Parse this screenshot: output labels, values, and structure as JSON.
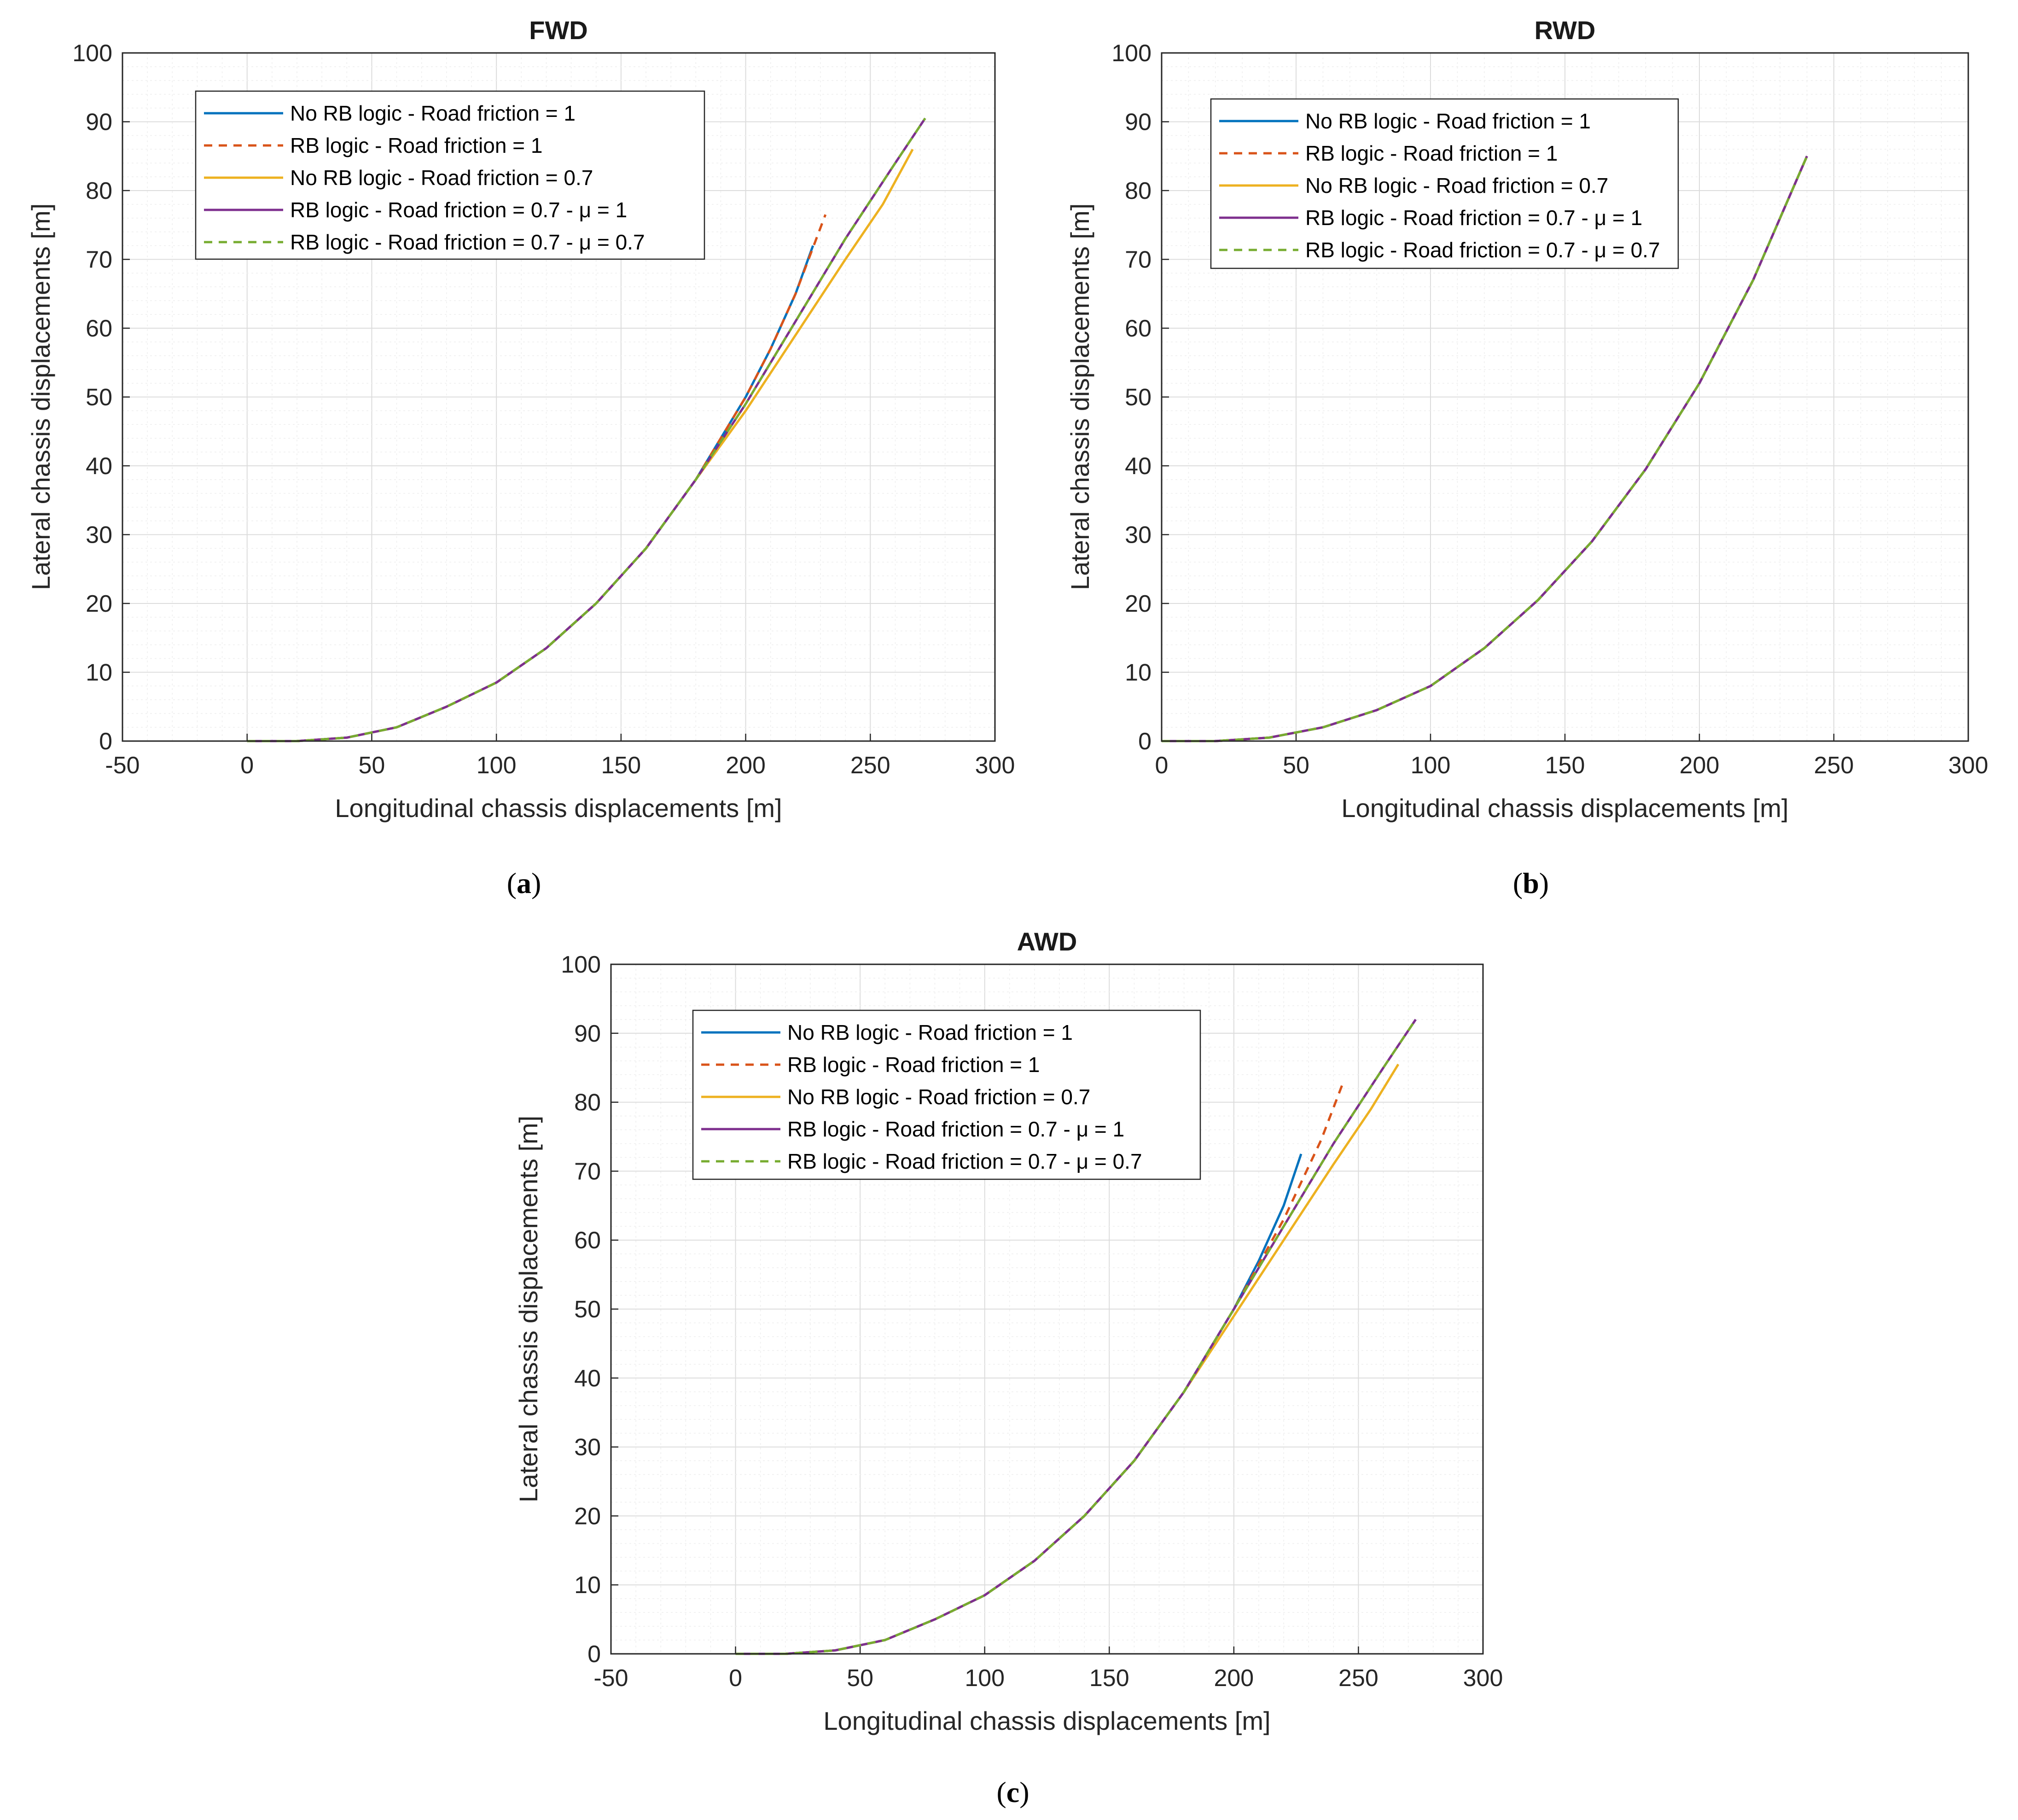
{
  "chart_data": [
    {
      "type": "line",
      "panel_id": "a",
      "title": "FWD",
      "caption_label": "a",
      "xlabel": "Longitudinal chassis displacements [m]",
      "ylabel": "Lateral chassis displacements [m]",
      "xlim": [
        -50,
        300
      ],
      "ylim": [
        0,
        100
      ],
      "xticks": [
        "-50",
        "0",
        "50",
        "100",
        "150",
        "200",
        "250",
        "300"
      ],
      "yticks": [
        "0",
        "10",
        "20",
        "30",
        "40",
        "50",
        "60",
        "70",
        "80",
        "90",
        "100"
      ],
      "grid": "major and minor",
      "legend_position": "top-left",
      "series": [
        {
          "name": "No RB logic - Road friction = 1",
          "color": "#0072BD",
          "style": "solid",
          "x": [
            0,
            20,
            40,
            60,
            80,
            100,
            120,
            140,
            160,
            180,
            200,
            210,
            220,
            227
          ],
          "y": [
            0,
            0,
            0.5,
            2,
            5,
            8.5,
            13.5,
            20,
            28,
            38,
            50,
            57,
            65,
            72
          ]
        },
        {
          "name": "RB logic - Road friction = 1",
          "color": "#D95319",
          "style": "dashed",
          "x": [
            0,
            20,
            40,
            60,
            80,
            100,
            120,
            140,
            160,
            180,
            200,
            210,
            220,
            232
          ],
          "y": [
            0,
            0,
            0.5,
            2,
            5,
            8.5,
            13.5,
            20,
            28,
            38,
            50,
            57,
            65,
            76.5
          ]
        },
        {
          "name": "No RB logic - Road friction = 0.7",
          "color": "#EDB120",
          "style": "solid",
          "x": [
            0,
            20,
            40,
            60,
            80,
            100,
            120,
            140,
            160,
            180,
            200,
            220,
            240,
            255,
            267
          ],
          "y": [
            0,
            0,
            0.5,
            2,
            5,
            8.5,
            13.5,
            20,
            28,
            38,
            48,
            59,
            70,
            78,
            86
          ]
        },
        {
          "name": "RB logic - Road friction = 0.7 - μ = 1",
          "color": "#7E2F8E",
          "style": "solid",
          "x": [
            0,
            20,
            40,
            60,
            80,
            100,
            120,
            140,
            160,
            180,
            200,
            220,
            240,
            260,
            272
          ],
          "y": [
            0,
            0,
            0.5,
            2,
            5,
            8.5,
            13.5,
            20,
            28,
            38,
            49,
            61,
            73,
            84,
            90.5
          ]
        },
        {
          "name": "RB logic - Road friction = 0.7 - μ = 0.7",
          "color": "#77AC30",
          "style": "dashed",
          "x": [
            0,
            20,
            40,
            60,
            80,
            100,
            120,
            140,
            160,
            180,
            200,
            220,
            240,
            260,
            272
          ],
          "y": [
            0,
            0,
            0.5,
            2,
            5,
            8.5,
            13.5,
            20,
            28,
            38,
            49,
            61,
            73,
            84,
            90.5
          ]
        }
      ]
    },
    {
      "type": "line",
      "panel_id": "b",
      "title": "RWD",
      "caption_label": "b",
      "xlabel": "Longitudinal chassis displacements [m]",
      "ylabel": "Lateral chassis displacements [m]",
      "xlim": [
        0,
        300
      ],
      "ylim": [
        0,
        100
      ],
      "xticks": [
        "0",
        "50",
        "100",
        "150",
        "200",
        "250",
        "300"
      ],
      "yticks": [
        "0",
        "10",
        "20",
        "30",
        "40",
        "50",
        "60",
        "70",
        "80",
        "90",
        "100"
      ],
      "grid": "major and minor",
      "legend_position": "top-left",
      "series": [
        {
          "name": "No RB logic - Road friction = 1",
          "color": "#0072BD",
          "style": "solid",
          "x": [
            0,
            20,
            40,
            60,
            80,
            100,
            120,
            140,
            160,
            180,
            200,
            220,
            240
          ],
          "y": [
            0,
            0,
            0.5,
            2,
            4.5,
            8,
            13.5,
            20.5,
            29,
            39.5,
            52,
            67,
            85
          ]
        },
        {
          "name": "RB logic - Road friction = 1",
          "color": "#D95319",
          "style": "dashed",
          "x": [
            0,
            20,
            40,
            60,
            80,
            100,
            120,
            140,
            160,
            180,
            200,
            220,
            240
          ],
          "y": [
            0,
            0,
            0.5,
            2,
            4.5,
            8,
            13.5,
            20.5,
            29,
            39.5,
            52,
            67,
            85
          ]
        },
        {
          "name": "No RB logic - Road friction = 0.7",
          "color": "#EDB120",
          "style": "solid",
          "x": [
            0,
            20,
            40,
            60,
            80,
            100,
            120,
            140,
            160,
            180,
            200,
            220,
            240
          ],
          "y": [
            0,
            0,
            0.5,
            2,
            4.5,
            8,
            13.5,
            20.5,
            29,
            39.5,
            52,
            67,
            85
          ]
        },
        {
          "name": "RB logic - Road friction = 0.7 - μ = 1",
          "color": "#7E2F8E",
          "style": "solid",
          "x": [
            0,
            20,
            40,
            60,
            80,
            100,
            120,
            140,
            160,
            180,
            200,
            220,
            240
          ],
          "y": [
            0,
            0,
            0.5,
            2,
            4.5,
            8,
            13.5,
            20.5,
            29,
            39.5,
            52,
            67,
            85
          ]
        },
        {
          "name": "RB logic - Road friction = 0.7 - μ = 0.7",
          "color": "#77AC30",
          "style": "dashed",
          "x": [
            0,
            20,
            40,
            60,
            80,
            100,
            120,
            140,
            160,
            180,
            200,
            220,
            240
          ],
          "y": [
            0,
            0,
            0.5,
            2,
            4.5,
            8,
            13.5,
            20.5,
            29,
            39.5,
            52,
            67,
            85
          ]
        }
      ]
    },
    {
      "type": "line",
      "panel_id": "c",
      "title": "AWD",
      "caption_label": "c",
      "xlabel": "Longitudinal chassis displacements [m]",
      "ylabel": "Lateral chassis displacements [m]",
      "xlim": [
        -50,
        300
      ],
      "ylim": [
        0,
        100
      ],
      "xticks": [
        "-50",
        "0",
        "50",
        "100",
        "150",
        "200",
        "250",
        "300"
      ],
      "yticks": [
        "0",
        "10",
        "20",
        "30",
        "40",
        "50",
        "60",
        "70",
        "80",
        "90",
        "100"
      ],
      "grid": "major and minor",
      "legend_position": "top-left",
      "series": [
        {
          "name": "No RB logic - Road friction = 1",
          "color": "#0072BD",
          "style": "solid",
          "x": [
            0,
            20,
            40,
            60,
            80,
            100,
            120,
            140,
            160,
            180,
            200,
            210,
            220,
            227
          ],
          "y": [
            0,
            0,
            0.5,
            2,
            5,
            8.5,
            13.5,
            20,
            28,
            38,
            50,
            57,
            65,
            72.5
          ]
        },
        {
          "name": "RB logic - Road friction = 1",
          "color": "#D95319",
          "style": "dashed",
          "x": [
            0,
            20,
            40,
            60,
            80,
            100,
            120,
            140,
            160,
            180,
            200,
            220,
            235,
            244
          ],
          "y": [
            0,
            0,
            0.5,
            2,
            5,
            8.5,
            13.5,
            20,
            28,
            38,
            50,
            63,
            74.5,
            83
          ]
        },
        {
          "name": "No RB logic - Road friction = 0.7",
          "color": "#EDB120",
          "style": "solid",
          "x": [
            0,
            20,
            40,
            60,
            80,
            100,
            120,
            140,
            160,
            180,
            200,
            220,
            240,
            255,
            266
          ],
          "y": [
            0,
            0,
            0.5,
            2,
            5,
            8.5,
            13.5,
            20,
            28,
            38,
            49,
            60,
            71,
            79,
            85.5
          ]
        },
        {
          "name": "RB logic - Road friction = 0.7 - μ = 1",
          "color": "#7E2F8E",
          "style": "solid",
          "x": [
            0,
            20,
            40,
            60,
            80,
            100,
            120,
            140,
            160,
            180,
            200,
            220,
            240,
            260,
            273
          ],
          "y": [
            0,
            0,
            0.5,
            2,
            5,
            8.5,
            13.5,
            20,
            28,
            38,
            50,
            62,
            74,
            85,
            92
          ]
        },
        {
          "name": "RB logic - Road friction = 0.7 - μ = 0.7",
          "color": "#77AC30",
          "style": "dashed",
          "x": [
            0,
            20,
            40,
            60,
            80,
            100,
            120,
            140,
            160,
            180,
            200,
            220,
            240,
            260,
            273
          ],
          "y": [
            0,
            0,
            0.5,
            2,
            5,
            8.5,
            13.5,
            20,
            28,
            38,
            50,
            62,
            74,
            85,
            92
          ]
        }
      ]
    }
  ]
}
